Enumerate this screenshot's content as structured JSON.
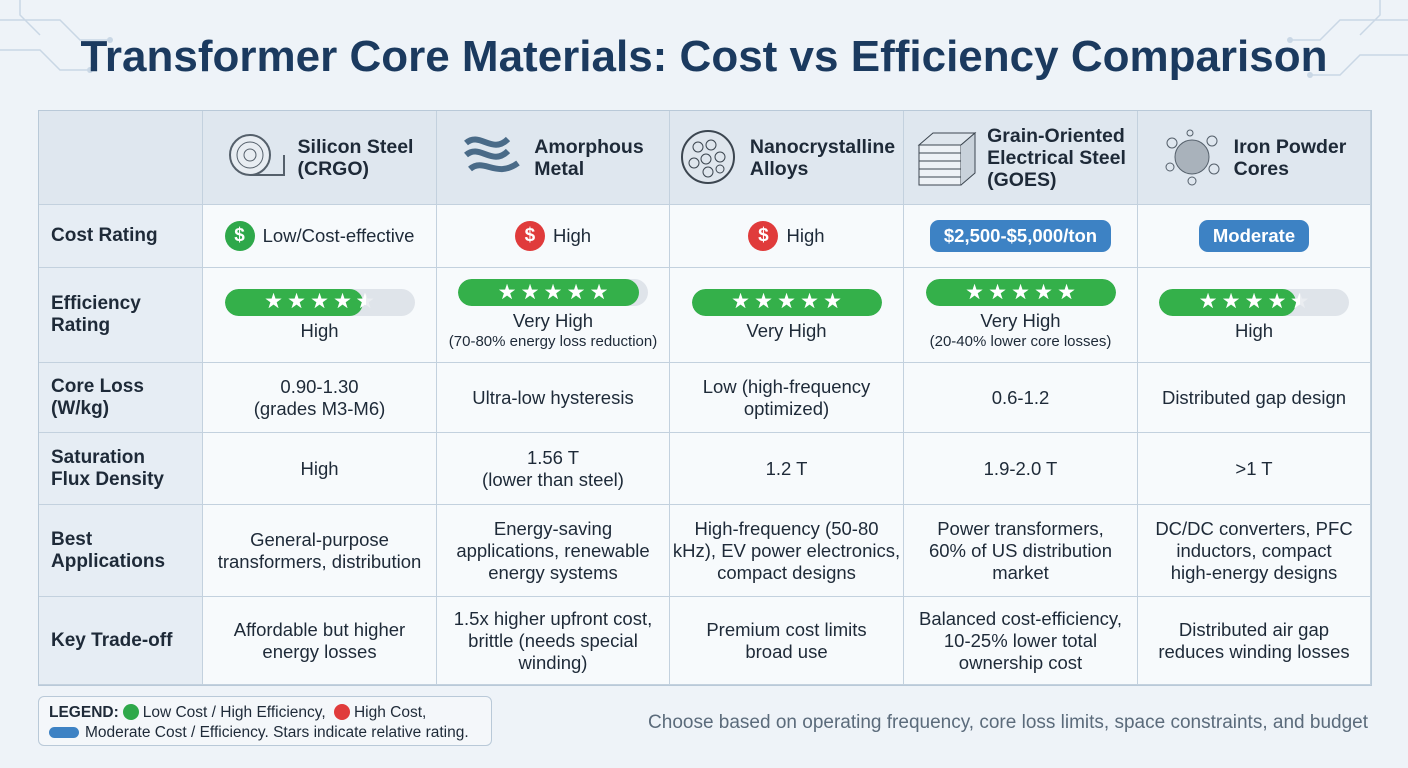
{
  "title": "Transformer Core Materials: Cost vs Efficiency Comparison",
  "table": {
    "materials": [
      {
        "name": [
          "Silicon Steel",
          "(CRGO)"
        ]
      },
      {
        "name": [
          "Amorphous",
          "Metal"
        ]
      },
      {
        "name": [
          "Nanocrystalline",
          "Alloys"
        ]
      },
      {
        "name": [
          "Grain-Oriented",
          "Electrical Steel",
          "(GOES)"
        ]
      },
      {
        "name": [
          "Iron Powder",
          "Cores"
        ]
      }
    ],
    "rating_scale": {
      "stars": 5,
      "bar": 100
    },
    "cost_row": {
      "label": [
        "Cost Rating"
      ],
      "cells": [
        {
          "text": "Low/Cost-effective",
          "style": "icon",
          "color": "#2ea84a",
          "symbol": "$"
        },
        {
          "text": "High",
          "style": "icon",
          "color": "#e03b3b",
          "symbol": "$"
        },
        {
          "text": "High",
          "style": "icon",
          "color": "#e03b3b",
          "symbol": "$"
        },
        {
          "text": "$2,500-$5,000/ton",
          "style": "badge",
          "color": "#3d82c4"
        },
        {
          "text": "Moderate",
          "style": "badge",
          "color": "#3d82c4"
        }
      ]
    },
    "efficiency_row": {
      "label": [
        "Efficiency",
        "Rating"
      ],
      "bar_color": "#34b04a",
      "cells": [
        {
          "stars": 4.5,
          "bar": 73,
          "text": "High"
        },
        {
          "stars": 5,
          "bar": 95,
          "text": "Very High",
          "note": "(70-80% energy loss reduction)"
        },
        {
          "stars": 5,
          "bar": 100,
          "text": "Very High"
        },
        {
          "stars": 5,
          "bar": 100,
          "text": "Very High",
          "note": "(20-40% lower core losses)"
        },
        {
          "stars": 4.5,
          "bar": 72,
          "text": "High"
        }
      ]
    },
    "rows": [
      {
        "label": [
          "Core Loss",
          "(W/kg)"
        ],
        "cells": [
          [
            "0.90-1.30",
            "(grades M3-M6)"
          ],
          [
            "Ultra-low hysteresis"
          ],
          [
            "Low (high-frequency",
            "optimized)"
          ],
          [
            "0.6-1.2"
          ],
          [
            "Distributed gap design"
          ]
        ]
      },
      {
        "label": [
          "Saturation",
          "Flux Density"
        ],
        "cells": [
          [
            "High"
          ],
          [
            "1.56 T",
            "(lower than steel)"
          ],
          [
            "1.2 T"
          ],
          [
            "1.9-2.0 T"
          ],
          [
            ">1 T"
          ]
        ]
      },
      {
        "label": [
          "Best",
          "Applications"
        ],
        "cells": [
          [
            "General-purpose",
            "transformers, distribution"
          ],
          [
            "Energy-saving",
            "applications, renewable",
            "energy systems"
          ],
          [
            "High-frequency (50-80",
            "kHz), EV power electronics,",
            "compact designs"
          ],
          [
            "Power transformers,",
            "60% of US distribution",
            "market"
          ],
          [
            "DC/DC converters, PFC",
            "inductors, compact",
            "high-energy designs"
          ]
        ]
      },
      {
        "label": [
          "Key Trade-off"
        ],
        "cells": [
          [
            "Affordable but higher",
            "energy losses"
          ],
          [
            "1.5x higher upfront cost,",
            "brittle (needs special",
            "winding)"
          ],
          [
            "Premium cost limits",
            "broad use"
          ],
          [
            "Balanced cost-efficiency,",
            "10-25% lower total",
            "ownership cost"
          ],
          [
            "Distributed air gap",
            "reduces winding losses"
          ]
        ]
      }
    ]
  },
  "legend": {
    "title": "LEGEND:",
    "items": [
      {
        "text": "Low Cost / High Efficiency,",
        "color": "#2ea84a"
      },
      {
        "text": "High Cost,",
        "color": "#e03b3b"
      },
      {
        "text": "Moderate Cost / Efficiency. Stars indicate relative rating.",
        "color": "#3d82c4"
      }
    ]
  },
  "footnote": "Choose based on operating frequency, core loss limits, space constraints, and budget"
}
